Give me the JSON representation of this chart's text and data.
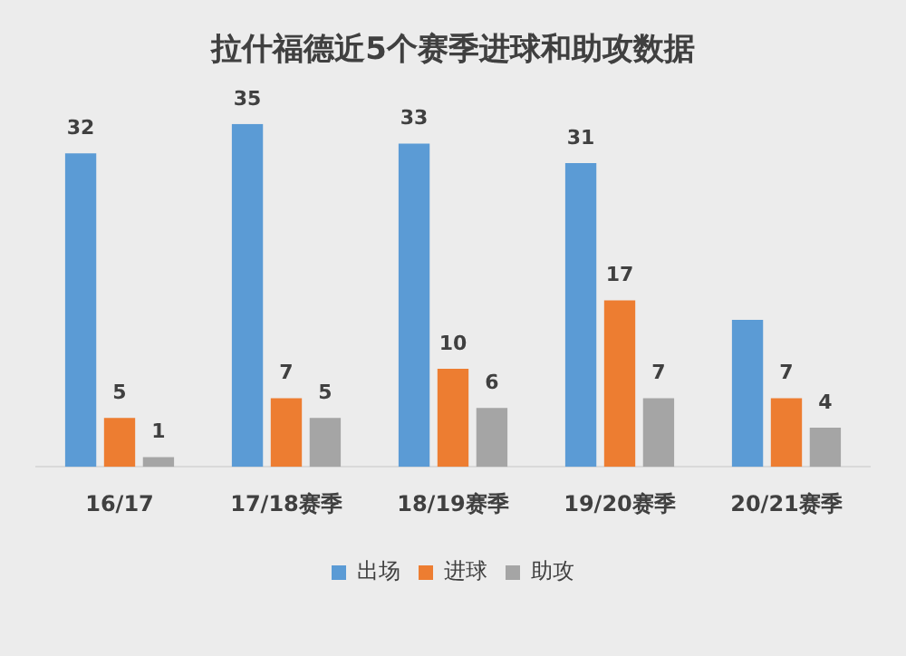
{
  "chart_data": {
    "type": "bar",
    "title": "拉什福德近5个赛季进球和助攻数据",
    "categories": [
      "16/17",
      "17/18赛季",
      "18/19赛季",
      "19/20赛季",
      "20/21赛季"
    ],
    "series": [
      {
        "name": "出场",
        "color": "#5b9bd5",
        "values": [
          32,
          35,
          33,
          31,
          15
        ],
        "value_labels": [
          "32",
          "35",
          "33",
          "31",
          null
        ]
      },
      {
        "name": "进球",
        "color": "#ed7d31",
        "values": [
          5,
          7,
          10,
          17,
          7
        ],
        "value_labels": [
          "5",
          "7",
          "10",
          "17",
          "7"
        ]
      },
      {
        "name": "助攻",
        "color": "#a5a5a5",
        "values": [
          1,
          5,
          6,
          7,
          4
        ],
        "value_labels": [
          "1",
          "5",
          "6",
          "7",
          "4"
        ]
      }
    ],
    "tick_labels": "x",
    "grid": false,
    "legend": "bottom"
  }
}
